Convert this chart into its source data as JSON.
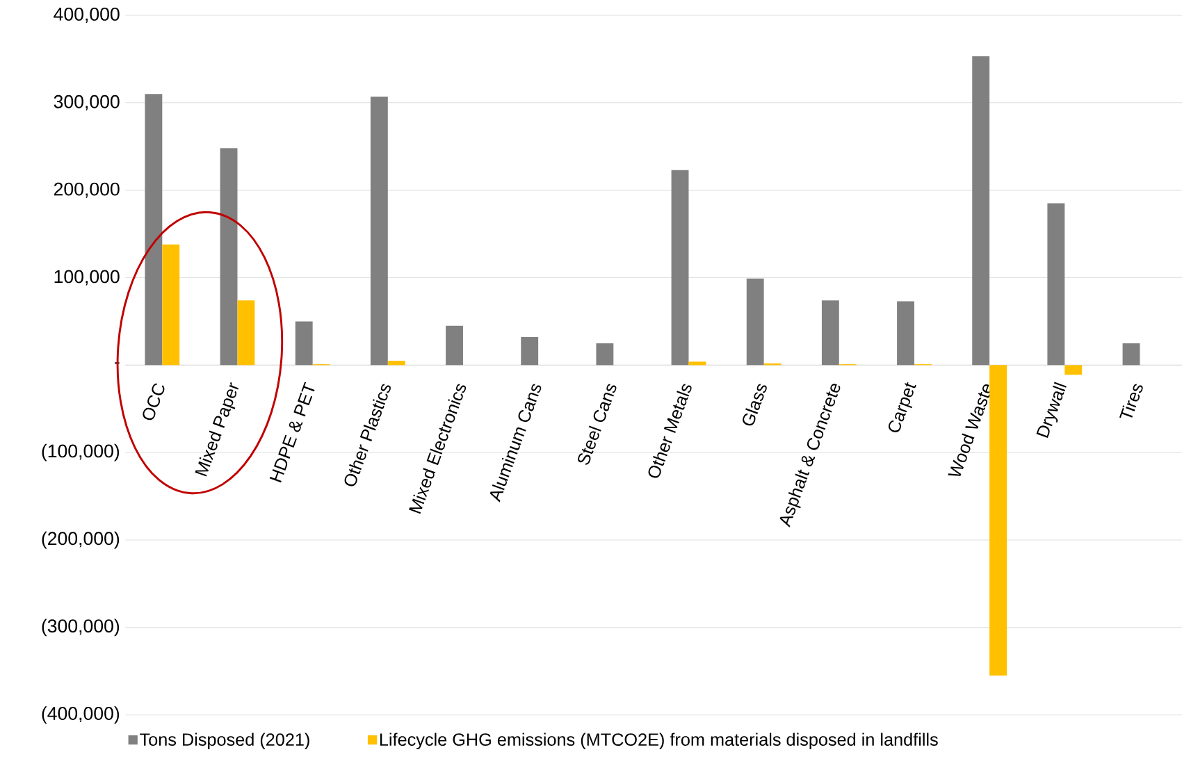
{
  "chart_data": {
    "type": "bar",
    "categories": [
      "OCC",
      "Mixed Paper",
      "HDPE & PET",
      "Other Plastics",
      "Mixed Electronics",
      "Aluminum Cans",
      "Steel Cans",
      "Other Metals",
      "Glass",
      "Asphalt & Concrete",
      "Carpet",
      "Wood Waste",
      "Drywall",
      "Tires"
    ],
    "series": [
      {
        "name": "Tons Disposed (2021)",
        "color": "#808080",
        "values": [
          310000,
          248000,
          50000,
          307000,
          45000,
          32000,
          25000,
          223000,
          99000,
          74000,
          73000,
          353000,
          185000,
          25000
        ]
      },
      {
        "name": "Lifecycle GHG emissions (MTCO2E) from materials disposed in landfills",
        "color": "#FFC000",
        "values": [
          138000,
          74000,
          1000,
          5000,
          0,
          0,
          0,
          4000,
          2000,
          1000,
          1000,
          -355000,
          -11000,
          0
        ]
      }
    ],
    "ylim": [
      -400000,
      400000
    ],
    "yticks": [
      {
        "value": -400000,
        "label": "(400,000)"
      },
      {
        "value": -300000,
        "label": "(300,000)"
      },
      {
        "value": -200000,
        "label": "(200,000)"
      },
      {
        "value": -100000,
        "label": "(100,000)"
      },
      {
        "value": 0,
        "label": "-"
      },
      {
        "value": 100000,
        "label": "100,000"
      },
      {
        "value": 200000,
        "label": "200,000"
      },
      {
        "value": 300000,
        "label": "300,000"
      },
      {
        "value": 400000,
        "label": "400,000"
      }
    ],
    "grid": "y",
    "legend": "bottom"
  }
}
